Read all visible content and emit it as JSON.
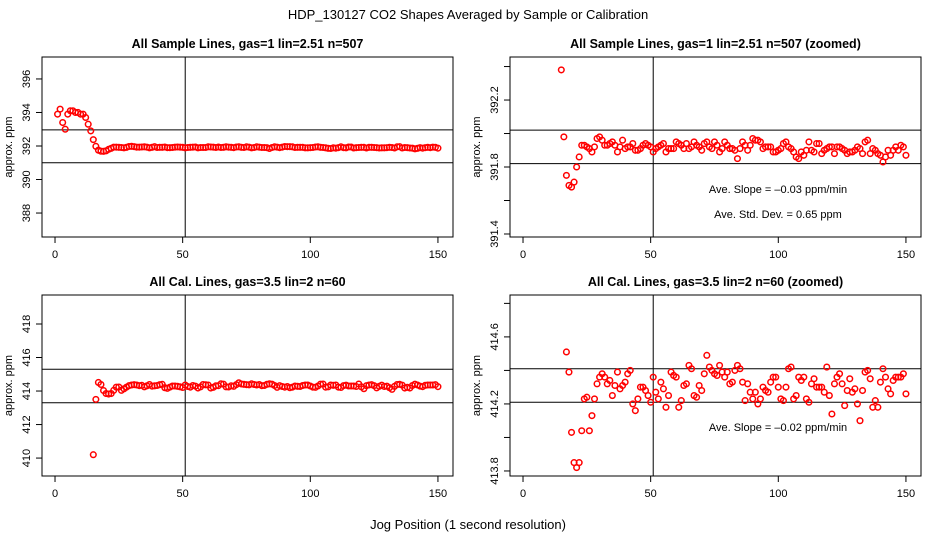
{
  "chart_data": {
    "type": "scatter",
    "title": "HDP_130127  CO2 Shapes Averaged by Sample or Calibration",
    "xlabel": "Jog Position (1 second resolution)",
    "point_color": "#ff0000",
    "series": {
      "sample": {
        "x_start": 1,
        "y": [
          393.9,
          394.2,
          393.4,
          393.0,
          393.9,
          394.1,
          394.1,
          394.0,
          394.0,
          393.9,
          393.9,
          393.7,
          393.3,
          392.9,
          392.38,
          391.98,
          391.75,
          391.69,
          391.68,
          391.71,
          391.8,
          391.86,
          391.93,
          391.93,
          391.92,
          391.91,
          391.89,
          391.92,
          391.97,
          391.98,
          391.96,
          391.93,
          391.93,
          391.94,
          391.95,
          391.93,
          391.89,
          391.92,
          391.96,
          391.91,
          391.92,
          391.92,
          391.94,
          391.9,
          391.9,
          391.91,
          391.93,
          391.94,
          391.93,
          391.92,
          391.89,
          391.91,
          391.92,
          391.93,
          391.94,
          391.89,
          391.91,
          391.91,
          391.91,
          391.95,
          391.94,
          391.93,
          391.91,
          391.94,
          391.91,
          391.92,
          391.95,
          391.93,
          391.92,
          391.9,
          391.94,
          391.95,
          391.92,
          391.91,
          391.95,
          391.93,
          391.89,
          391.91,
          391.95,
          391.93,
          391.91,
          391.91,
          391.9,
          391.85,
          391.91,
          391.95,
          391.93,
          391.9,
          391.93,
          391.97,
          391.96,
          391.96,
          391.95,
          391.91,
          391.92,
          391.92,
          391.92,
          391.89,
          391.89,
          391.9,
          391.91,
          391.94,
          391.95,
          391.92,
          391.91,
          391.89,
          391.86,
          391.85,
          391.89,
          391.87,
          391.9,
          391.95,
          391.9,
          391.89,
          391.94,
          391.94,
          391.88,
          391.9,
          391.91,
          391.92,
          391.92,
          391.88,
          391.92,
          391.92,
          391.91,
          391.9,
          391.88,
          391.89,
          391.89,
          391.9,
          391.92,
          391.91,
          391.88,
          391.95,
          391.96,
          391.88,
          391.91,
          391.9,
          391.88,
          391.87,
          391.83,
          391.86,
          391.9,
          391.87,
          391.9,
          391.92,
          391.9,
          391.93,
          391.92,
          391.87
        ]
      },
      "cal": {
        "x_start": 15,
        "y": [
          410.2,
          413.5,
          414.51,
          414.39,
          414.03,
          413.85,
          413.82,
          413.85,
          414.04,
          414.23,
          414.24,
          414.04,
          414.13,
          414.23,
          414.32,
          414.36,
          414.38,
          414.36,
          414.32,
          414.34,
          414.25,
          414.31,
          414.39,
          414.29,
          414.31,
          414.33,
          414.38,
          414.4,
          414.2,
          414.16,
          414.23,
          414.3,
          414.3,
          414.28,
          414.25,
          414.21,
          414.36,
          414.27,
          414.23,
          414.33,
          414.29,
          414.18,
          414.25,
          414.39,
          414.37,
          414.36,
          414.18,
          414.22,
          414.31,
          414.32,
          414.43,
          414.41,
          414.25,
          414.24,
          414.31,
          414.28,
          414.38,
          414.49,
          414.42,
          414.4,
          414.38,
          414.37,
          414.43,
          414.39,
          414.36,
          414.39,
          414.32,
          414.33,
          414.4,
          414.43,
          414.41,
          414.33,
          414.22,
          414.32,
          414.27,
          414.23,
          414.27,
          414.2,
          414.23,
          414.3,
          414.28,
          414.27,
          414.33,
          414.36,
          414.36,
          414.3,
          414.23,
          414.22,
          414.3,
          414.41,
          414.42,
          414.23,
          414.25,
          414.36,
          414.34,
          414.36,
          414.23,
          414.21,
          414.32,
          414.35,
          414.3,
          414.3,
          414.3,
          414.27,
          414.42,
          414.25,
          414.14,
          414.32,
          414.36,
          414.38,
          414.32,
          414.19,
          414.28,
          414.35,
          414.27,
          414.29,
          414.2,
          414.1,
          414.28,
          414.39,
          414.4,
          414.35,
          414.18,
          414.22,
          414.18,
          414.33,
          414.41,
          414.36,
          414.29,
          414.26,
          414.34,
          414.36,
          414.36,
          414.36,
          414.38,
          414.26
        ]
      }
    },
    "panels": [
      {
        "title": "All Sample Lines, gas=1 lin=2.51 n=507",
        "series": "sample",
        "ylabel": "approx. ppm",
        "xlim": [
          -5.1,
          155.9
        ],
        "ylim": [
          386.57,
          397.31
        ],
        "xticks": [
          0,
          50,
          100,
          150
        ],
        "xtick_labels": [
          "0",
          "50",
          "100",
          "150"
        ],
        "yticks": [
          388,
          390,
          392,
          394,
          396
        ],
        "ytick_labels": [
          "388",
          "390",
          "392",
          "394",
          "396"
        ],
        "hlines": [
          392.96,
          391.0
        ],
        "vline": 51,
        "annotations": []
      },
      {
        "title": "All Sample Lines, gas=1 lin=2.51 n=507 (zoomed)",
        "series": "sample",
        "ylabel": "approx. ppm",
        "xlim": [
          -5.1,
          155.9
        ],
        "ylim": [
          391.382,
          392.457
        ],
        "xticks": [
          0,
          50,
          100,
          150
        ],
        "xtick_labels": [
          "0",
          "50",
          "100",
          "150"
        ],
        "yticks": [
          391.4,
          391.6,
          391.8,
          392.0,
          392.2,
          392.4
        ],
        "ytick_labels": [
          "391.4",
          "",
          "391.8",
          "",
          "392.2",
          ""
        ],
        "hlines": [
          392.02,
          391.82
        ],
        "vline": 51,
        "annotations": [
          "Ave. Slope =  –0.03  ppm/min",
          "Ave. Std. Dev. =  0.65  ppm"
        ]
      },
      {
        "title": "All Cal. Lines, gas=3.5 lin=2 n=60",
        "series": "cal",
        "ylabel": "approx. ppm",
        "xlim": [
          -5.1,
          155.9
        ],
        "ylim": [
          408.93,
          419.73
        ],
        "xticks": [
          0,
          50,
          100,
          150
        ],
        "xtick_labels": [
          "0",
          "50",
          "100",
          "150"
        ],
        "yticks": [
          410,
          412,
          414,
          416,
          418
        ],
        "ytick_labels": [
          "410",
          "412",
          "414",
          "416",
          "418"
        ],
        "hlines": [
          415.3,
          413.3
        ],
        "vline": 51,
        "annotations": []
      },
      {
        "title": "All Cal. Lines, gas=3.5 lin=2 n=60 (zoomed)",
        "series": "cal",
        "ylabel": "approx. ppm",
        "xlim": [
          -5.1,
          155.9
        ],
        "ylim": [
          413.77,
          414.85
        ],
        "xticks": [
          0,
          50,
          100,
          150
        ],
        "xtick_labels": [
          "0",
          "50",
          "100",
          "150"
        ],
        "yticks": [
          413.8,
          414.0,
          414.2,
          414.4,
          414.6,
          414.8
        ],
        "ytick_labels": [
          "413.8",
          "",
          "414.2",
          "",
          "414.6",
          ""
        ],
        "hlines": [
          414.41,
          414.21
        ],
        "vline": 51,
        "annotations": [
          "Ave. Slope =  –0.02  ppm/min"
        ]
      }
    ]
  }
}
